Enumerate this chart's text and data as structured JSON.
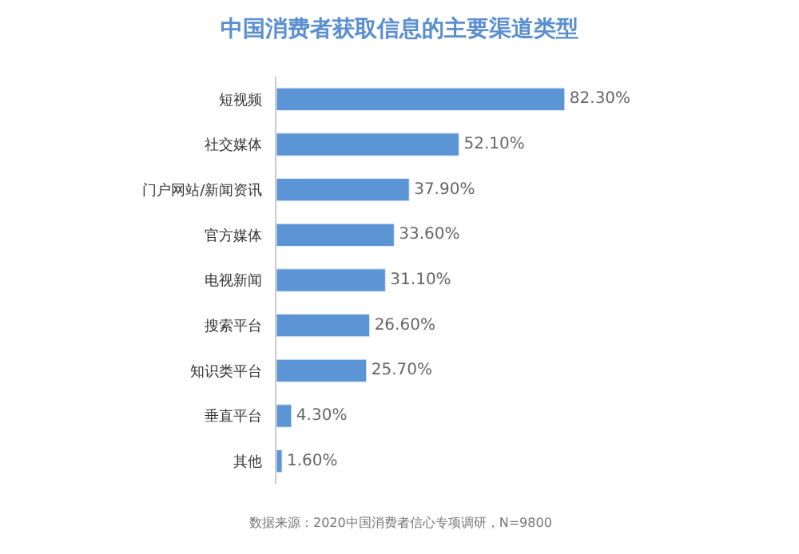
{
  "chart_data": {
    "type": "bar",
    "orientation": "horizontal",
    "title": "中国消费者获取信息的主要渠道类型",
    "categories": [
      "短视频",
      "社交媒体",
      "门户网站/新闻资讯",
      "官方媒体",
      "电视新闻",
      "搜索平台",
      "知识类平台",
      "垂直平台",
      "其他"
    ],
    "values": [
      82.3,
      52.1,
      37.9,
      33.6,
      31.1,
      26.6,
      25.7,
      4.3,
      1.6
    ],
    "value_labels": [
      "82.30%",
      "52.10%",
      "37.90%",
      "33.60%",
      "31.10%",
      "26.60%",
      "25.70%",
      "4.30%",
      "1.60%"
    ],
    "color": "#5b95d5",
    "annotations": [
      "数据来源：2020中国消费者信心专项调研，N=9800"
    ],
    "legend": false
  }
}
